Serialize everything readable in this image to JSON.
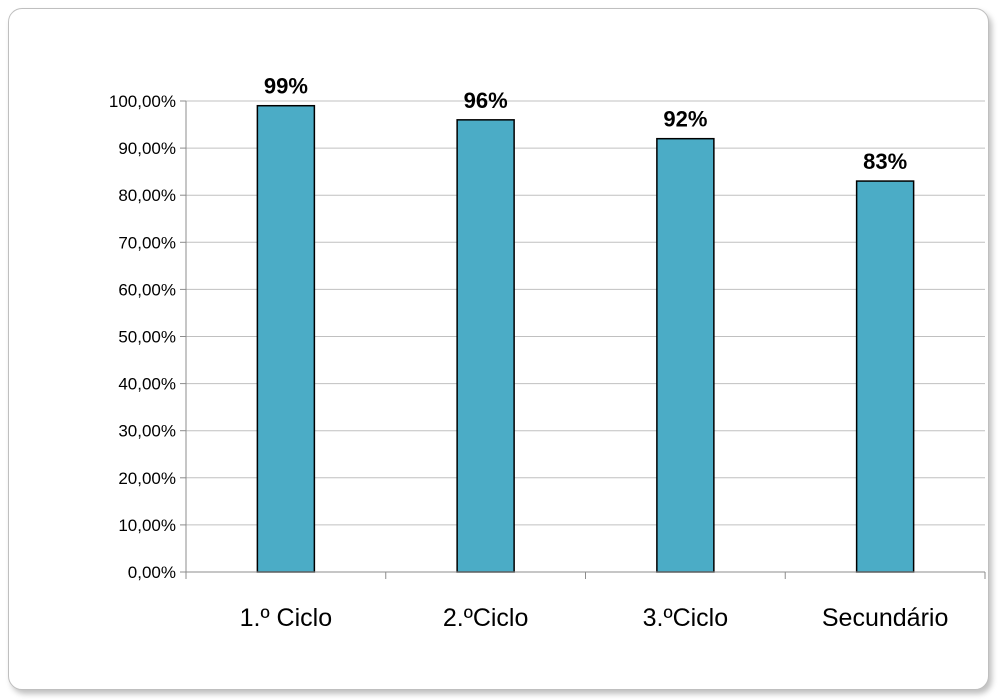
{
  "chart_data": {
    "type": "bar",
    "categories": [
      "1.º Ciclo",
      "2.ºCiclo",
      "3.ºCiclo",
      "Secundário"
    ],
    "values": [
      99,
      96,
      92,
      83
    ],
    "data_labels": [
      "99%",
      "96%",
      "92%",
      "83%"
    ],
    "y_ticks": [
      0,
      10,
      20,
      30,
      40,
      50,
      60,
      70,
      80,
      90,
      100
    ],
    "y_tick_labels": [
      "0,00%",
      "10,00%",
      "20,00%",
      "30,00%",
      "40,00%",
      "50,00%",
      "60,00%",
      "70,00%",
      "80,00%",
      "90,00%",
      "100,00%"
    ],
    "ylim": [
      0,
      100
    ],
    "grid": true,
    "legend": "none",
    "title": "",
    "xlabel": "",
    "ylabel": "",
    "colors": {
      "bar_fill": "#4bacc6",
      "bar_stroke": "#000000",
      "grid": "#c0c0c0",
      "axis": "#8c8c8c"
    }
  }
}
